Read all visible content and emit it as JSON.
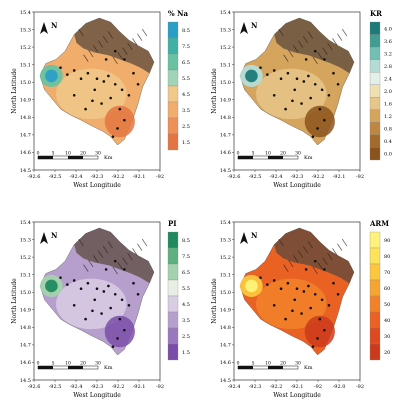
{
  "figure": {
    "panels": [
      {
        "id": "na",
        "legend_title": "% Na",
        "legend_values": [
          "8.5",
          "7.5",
          "6.5",
          "5.5",
          "4.5",
          "3.5",
          "2.5",
          "1.5"
        ],
        "legend_colors": [
          "#2a9fc6",
          "#3fb0a4",
          "#68c2a1",
          "#9fd4b8",
          "#f0c88a",
          "#f1ad6c",
          "#ee9058",
          "#e47542"
        ],
        "y_ticks": [
          "15.4",
          "15.3",
          "15.2",
          "15.1",
          "15.0",
          "14.9",
          "14.8",
          "14.7",
          "14.6",
          "14.5"
        ],
        "x_ticks": [
          "-92.6",
          "-92.5",
          "-92.4",
          "-92.3",
          "-92.2",
          "-92.1",
          "-92"
        ],
        "x_label": "West Longitude",
        "y_label": "North Latitude",
        "north_label": "N",
        "scale_ticks": [
          "0",
          "5",
          "10",
          "20",
          "30"
        ],
        "scale_unit": "Km"
      },
      {
        "id": "kr",
        "legend_title": "KR",
        "legend_values": [
          "4.0",
          "3.6",
          "3.2",
          "2.8",
          "2.4",
          "2.0",
          "1.6",
          "1.2",
          "0.8",
          "0.4",
          "0.0"
        ],
        "legend_colors": [
          "#1c7a78",
          "#3f9d92",
          "#72bfb3",
          "#b4dcd5",
          "#e3efe9",
          "#f0dfb1",
          "#e6c68a",
          "#d5a55e",
          "#bf8641",
          "#a46a2c",
          "#8b531c"
        ],
        "y_ticks": [
          "15.4",
          "15.3",
          "15.2",
          "15.1",
          "15.0",
          "14.9",
          "14.8",
          "14.7",
          "14.6",
          "14.5"
        ],
        "x_ticks": [
          "-92.6",
          "-92.5",
          "-92.4",
          "-92.3",
          "-92.2",
          "-92.1",
          "-92"
        ],
        "x_label": "West Longitude",
        "y_label": "North Latitude",
        "north_label": "N",
        "scale_ticks": [
          "0",
          "5",
          "10",
          "20",
          "30"
        ],
        "scale_unit": "Km"
      },
      {
        "id": "pi",
        "legend_title": "PI",
        "legend_values": [
          "8.5",
          "7.5",
          "6.5",
          "5.5",
          "4.5",
          "3.5",
          "2.5",
          "1.5"
        ],
        "legend_colors": [
          "#1f8a5e",
          "#5fb07f",
          "#a2d3ae",
          "#e7efe5",
          "#d9cde3",
          "#b79fcd",
          "#9a78bf",
          "#7a4ea8"
        ],
        "y_ticks": [
          "15.4",
          "15.3",
          "15.2",
          "15.1",
          "15.0",
          "14.9",
          "14.8",
          "14.7",
          "14.6",
          "14.5"
        ],
        "x_ticks": [
          "-92.6",
          "-92.5",
          "-92.4",
          "-92.3",
          "-92.2",
          "-92.1",
          "-92"
        ],
        "x_label": "West Longitude",
        "y_label": "North Latitude",
        "north_label": "N",
        "scale_ticks": [
          "0",
          "5",
          "10",
          "20",
          "30"
        ],
        "scale_unit": "Km"
      },
      {
        "id": "arm",
        "legend_title": "ARM",
        "legend_values": [
          "90",
          "80",
          "70",
          "60",
          "50",
          "40",
          "30",
          "20"
        ],
        "legend_colors": [
          "#fff27a",
          "#fde35a",
          "#fcc63f",
          "#f7a531",
          "#f2822a",
          "#ea6124",
          "#dd4a20",
          "#cc3a1c"
        ],
        "y_ticks": [
          "15.4",
          "15.3",
          "15.2",
          "15.1",
          "15.0",
          "14.9",
          "14.8",
          "14.7",
          "14.6",
          "14.5"
        ],
        "x_ticks": [
          "-92.4",
          "-92.3",
          "-92.2",
          "-92.1",
          "-92",
          "-92.0",
          "-92"
        ],
        "x_label": "West Longitude",
        "y_label": "North Latitude",
        "north_label": "N",
        "scale_ticks": [
          "0",
          "5",
          "10",
          "20",
          "30"
        ],
        "scale_unit": "Km"
      }
    ]
  }
}
